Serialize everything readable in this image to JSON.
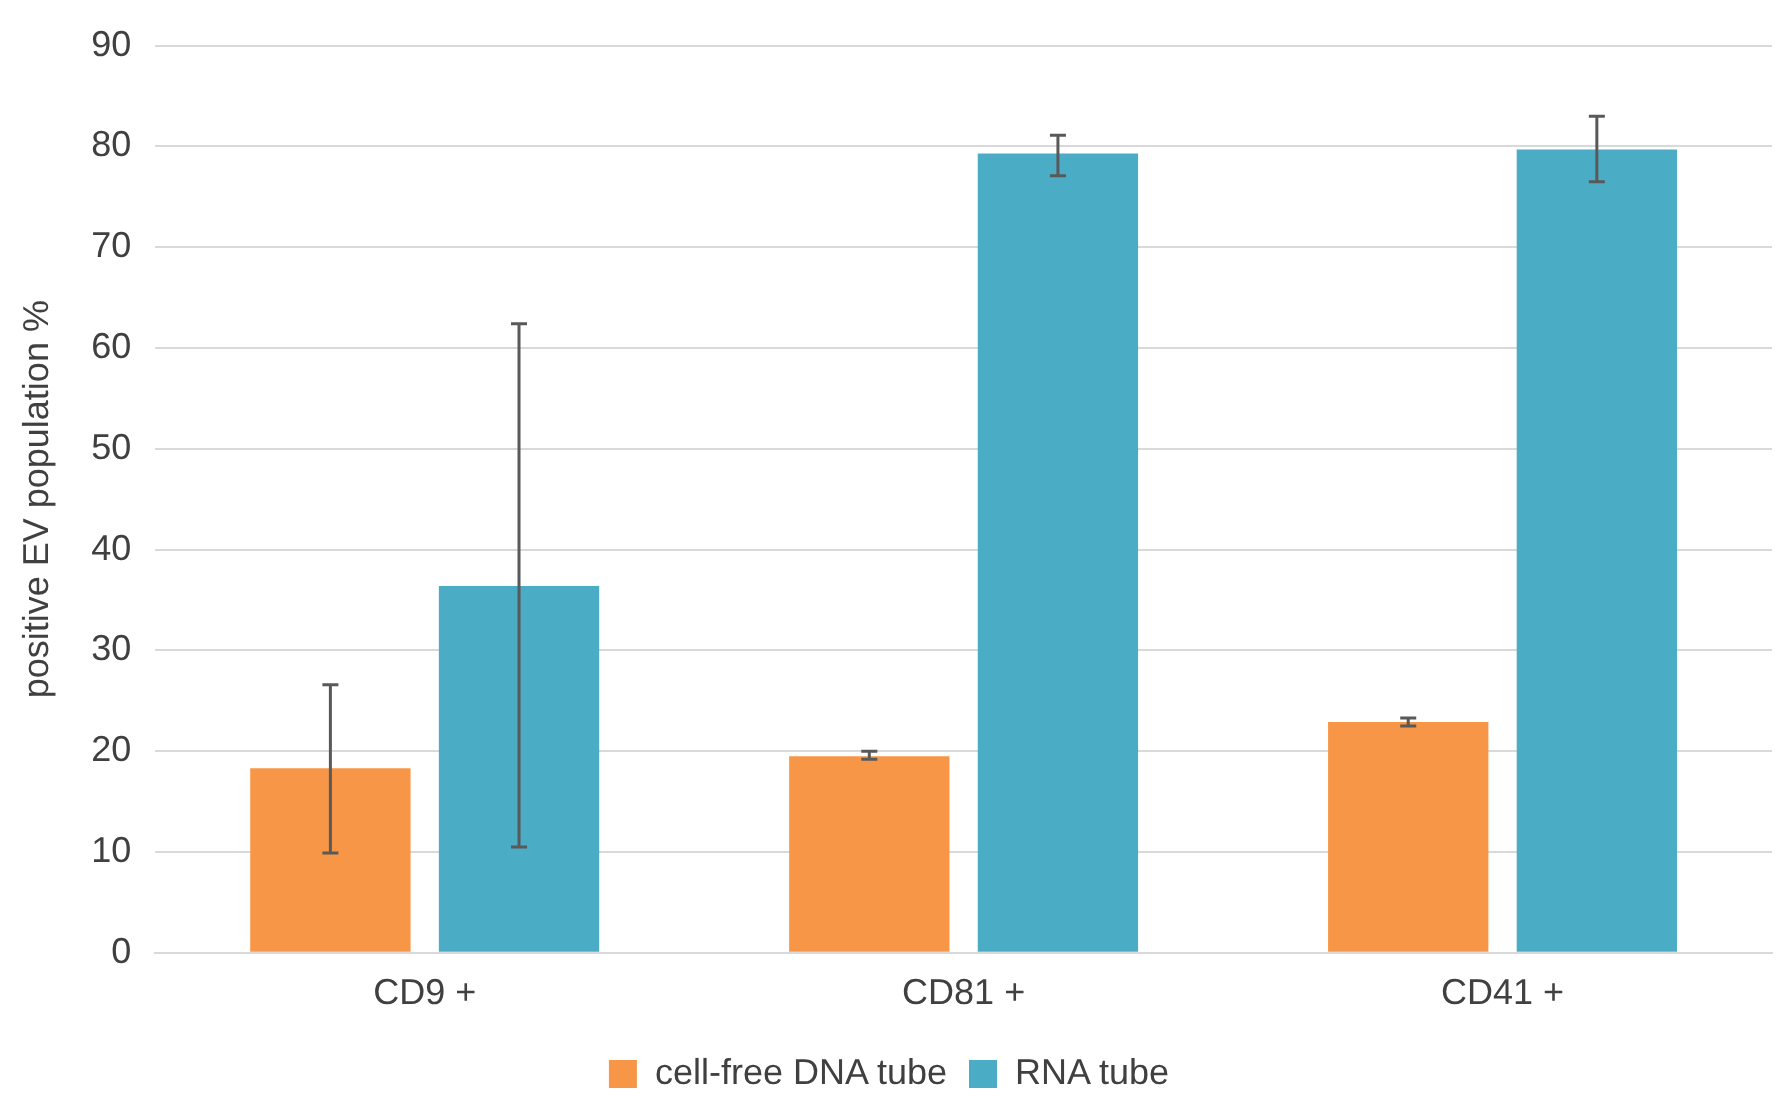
{
  "chart_data": {
    "type": "bar",
    "ylabel": "positive EV population %",
    "categories": [
      "CD9 +",
      "CD81 +",
      "CD41 +"
    ],
    "series": [
      {
        "name": "cell-free DNA tube",
        "color": "#f79646",
        "values": [
          18.3,
          19.5,
          22.9
        ],
        "errors": [
          [
            9.9,
            26.6
          ],
          [
            19.2,
            20.0
          ],
          [
            22.5,
            23.3
          ]
        ]
      },
      {
        "name": "RNA tube",
        "color": "#4bacc6",
        "values": [
          36.4,
          79.3,
          79.7
        ],
        "errors": [
          [
            10.5,
            62.4
          ],
          [
            77.1,
            81.1
          ],
          [
            76.5,
            83.0
          ]
        ]
      }
    ],
    "ylim": [
      0,
      90
    ],
    "yticks": [
      0,
      10,
      20,
      30,
      40,
      50,
      60,
      70,
      80,
      90
    ],
    "grid": "y",
    "legend": "bottom"
  }
}
